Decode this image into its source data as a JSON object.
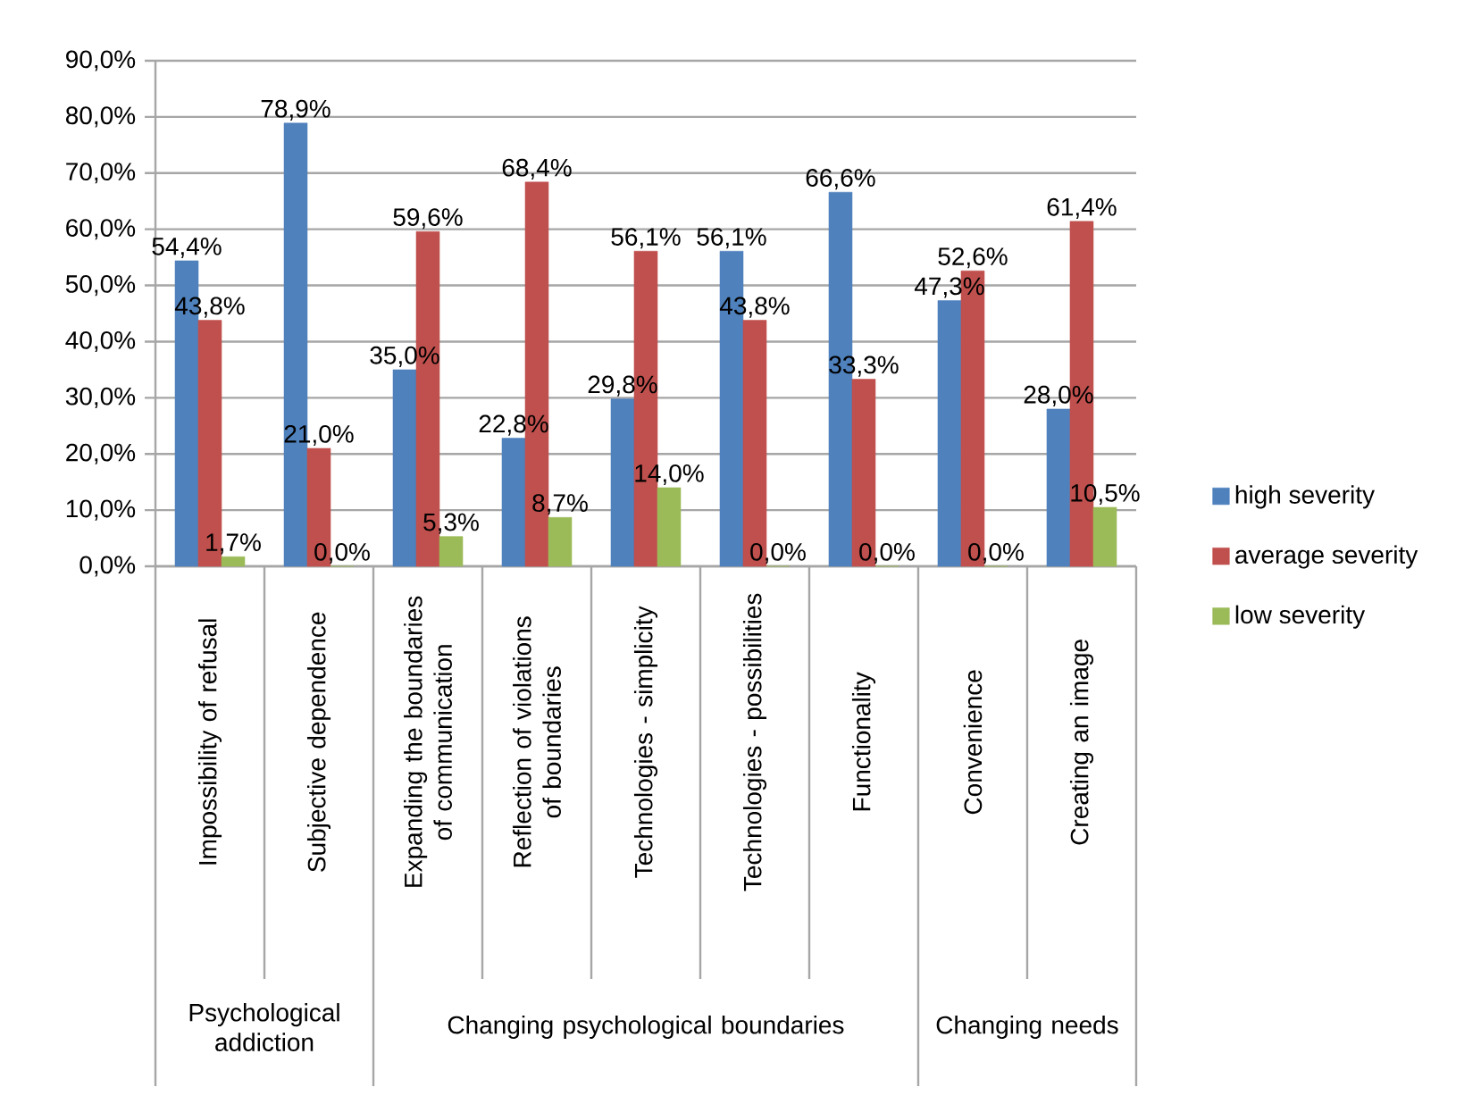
{
  "chart_data": {
    "type": "bar",
    "categories": [
      "Impossibility of refusal",
      "Subjective dependence",
      "Expanding the boundaries of communication",
      "Reflection of violations of boundaries",
      "Technologies - simplicity",
      "Technologies - possibilities",
      "Functionality",
      "Convenience",
      "Creating an image"
    ],
    "series": [
      {
        "name": "high severity",
        "color": "#4f81bd",
        "values": [
          54.4,
          78.9,
          35.0,
          22.8,
          29.8,
          56.1,
          66.6,
          47.3,
          28.0
        ],
        "value_labels": [
          "54,4%",
          "78,9%",
          "35,0%",
          "22,8%",
          "29,8%",
          "56,1%",
          "66,6%",
          "47,3%",
          "28,0%"
        ]
      },
      {
        "name": "average severity",
        "color": "#c0504d",
        "values": [
          43.8,
          21.0,
          59.6,
          68.4,
          56.1,
          43.8,
          33.3,
          52.6,
          61.4
        ],
        "value_labels": [
          "43,8%",
          "21,0%",
          "59,6%",
          "68,4%",
          "56,1%",
          "43,8%",
          "33,3%",
          "52,6%",
          "61,4%"
        ]
      },
      {
        "name": "low severity",
        "color": "#9bbb59",
        "values": [
          1.7,
          0.0,
          5.3,
          8.7,
          14.0,
          0.0,
          0.0,
          0.0,
          10.5
        ],
        "value_labels": [
          "1,7%",
          "0,0%",
          "5,3%",
          "8,7%",
          "14,0%",
          "0,0%",
          "0,0%",
          "0,0%",
          "10,5%"
        ]
      }
    ],
    "ylim": [
      0,
      90
    ],
    "yticks": [
      {
        "value": 0,
        "label": "0,0%"
      },
      {
        "value": 10,
        "label": "10,0%"
      },
      {
        "value": 20,
        "label": "20,0%"
      },
      {
        "value": 30,
        "label": "30,0%"
      },
      {
        "value": 40,
        "label": "40,0%"
      },
      {
        "value": 50,
        "label": "50,0%"
      },
      {
        "value": 60,
        "label": "60,0%"
      },
      {
        "value": 70,
        "label": "70,0%"
      },
      {
        "value": 80,
        "label": "80,0%"
      },
      {
        "value": 90,
        "label": "90,0%"
      }
    ],
    "grid": "y",
    "legend": "right",
    "annotations": [
      "Psychological addiction",
      "Changing psychological boundaries",
      "Changing needs"
    ]
  }
}
